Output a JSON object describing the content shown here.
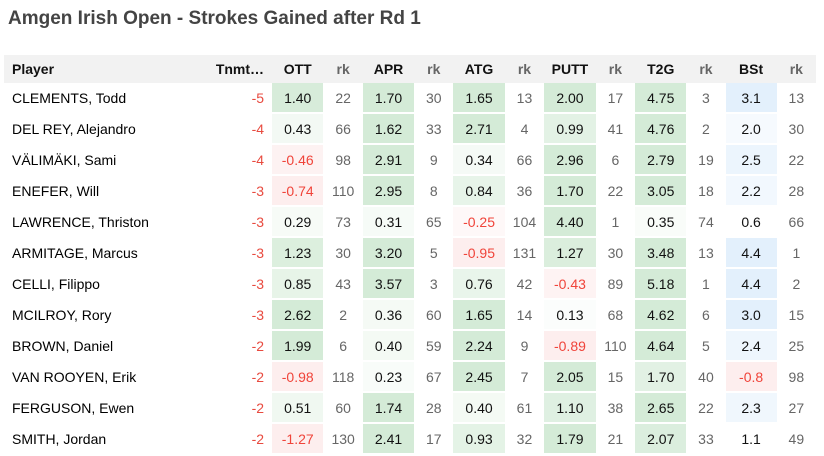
{
  "title": "Amgen Irish Open - Strokes Gained after Rd 1",
  "colors": {
    "positive": "#d4ebd7",
    "bst": "#e3f0fc",
    "negative": "#fdeeee",
    "neg_text": "#f0443a"
  },
  "columns": [
    "Player",
    "Tnmt…",
    "OTT",
    "rk",
    "APR",
    "rk",
    "ATG",
    "rk",
    "PUTT",
    "rk",
    "T2G",
    "rk",
    "BSt",
    "rk"
  ],
  "rows": [
    [
      "CLEMENTS, Todd",
      "-5",
      "1.40",
      "22",
      "1.70",
      "30",
      "1.65",
      "13",
      "2.00",
      "17",
      "4.75",
      "3",
      "3.1",
      "13"
    ],
    [
      "DEL REY, Alejandro",
      "-4",
      "0.43",
      "66",
      "1.62",
      "33",
      "2.71",
      "4",
      "0.99",
      "41",
      "4.76",
      "2",
      "2.0",
      "30"
    ],
    [
      "VÄLIMÄKI, Sami",
      "-4",
      "-0.46",
      "98",
      "2.91",
      "9",
      "0.34",
      "66",
      "2.96",
      "6",
      "2.79",
      "19",
      "2.5",
      "22"
    ],
    [
      "ENEFER, Will",
      "-3",
      "-0.74",
      "110",
      "2.95",
      "8",
      "0.84",
      "36",
      "1.70",
      "22",
      "3.05",
      "18",
      "2.2",
      "28"
    ],
    [
      "LAWRENCE, Thriston",
      "-3",
      "0.29",
      "73",
      "0.31",
      "65",
      "-0.25",
      "104",
      "4.40",
      "1",
      "0.35",
      "74",
      "0.6",
      "66"
    ],
    [
      "ARMITAGE, Marcus",
      "-3",
      "1.23",
      "30",
      "3.20",
      "5",
      "-0.95",
      "131",
      "1.27",
      "30",
      "3.48",
      "13",
      "4.4",
      "1"
    ],
    [
      "CELLI, Filippo",
      "-3",
      "0.85",
      "43",
      "3.57",
      "3",
      "0.76",
      "42",
      "-0.43",
      "89",
      "5.18",
      "1",
      "4.4",
      "2"
    ],
    [
      "MCILROY, Rory",
      "-3",
      "2.62",
      "2",
      "0.36",
      "60",
      "1.65",
      "14",
      "0.13",
      "68",
      "4.62",
      "6",
      "3.0",
      "15"
    ],
    [
      "BROWN, Daniel",
      "-2",
      "1.99",
      "6",
      "0.40",
      "59",
      "2.24",
      "9",
      "-0.89",
      "110",
      "4.64",
      "5",
      "2.4",
      "25"
    ],
    [
      "VAN ROOYEN, Erik",
      "-2",
      "-0.98",
      "118",
      "0.23",
      "67",
      "2.45",
      "7",
      "2.05",
      "15",
      "1.70",
      "40",
      "-0.8",
      "98"
    ],
    [
      "FERGUSON, Ewen",
      "-2",
      "0.51",
      "60",
      "1.74",
      "28",
      "0.40",
      "61",
      "1.10",
      "38",
      "2.65",
      "22",
      "2.3",
      "27"
    ],
    [
      "SMITH, Jordan",
      "-2",
      "-1.27",
      "130",
      "2.41",
      "17",
      "0.93",
      "32",
      "1.79",
      "21",
      "2.07",
      "33",
      "1.1",
      "49"
    ]
  ]
}
